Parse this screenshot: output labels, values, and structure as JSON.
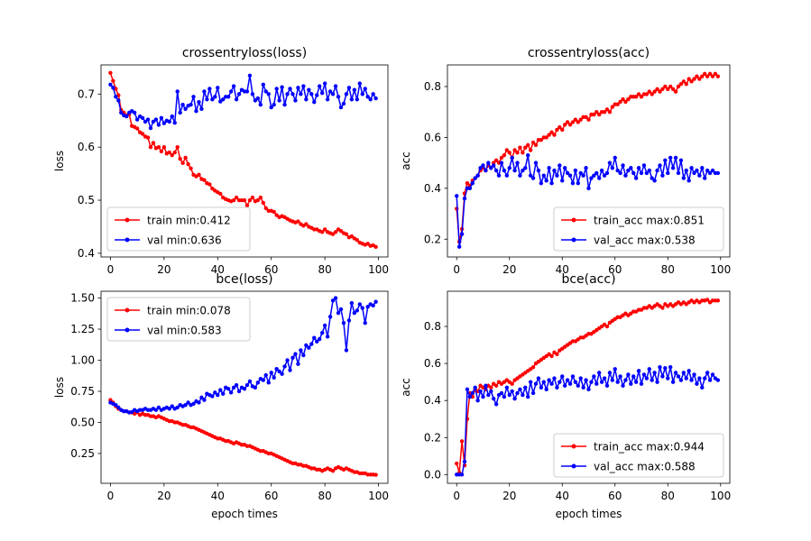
{
  "chart_data": [
    {
      "type": "line",
      "title": "crossentryloss(loss)",
      "xlabel": "",
      "ylabel": "loss",
      "xlim": [
        -3.5,
        103.5
      ],
      "ylim": [
        0.393,
        0.755
      ],
      "xticks": [
        0,
        20,
        40,
        60,
        80,
        100
      ],
      "yticks": [
        0.4,
        0.5,
        0.6,
        0.7
      ],
      "xticklabels": [
        "0",
        "20",
        "40",
        "60",
        "80",
        "100"
      ],
      "yticklabels": [
        "0.4",
        "0.5",
        "0.6",
        "0.7"
      ],
      "legend_position": "lower-left",
      "series": [
        {
          "name": "train min:0.412",
          "color": "#ff0000",
          "values": [
            0.74,
            0.725,
            0.71,
            0.698,
            0.67,
            0.665,
            0.66,
            0.662,
            0.64,
            0.638,
            0.635,
            0.628,
            0.625,
            0.62,
            0.618,
            0.6,
            0.608,
            0.598,
            0.6,
            0.592,
            0.6,
            0.588,
            0.59,
            0.585,
            0.59,
            0.6,
            0.578,
            0.57,
            0.58,
            0.568,
            0.56,
            0.548,
            0.545,
            0.548,
            0.54,
            0.538,
            0.532,
            0.53,
            0.522,
            0.518,
            0.515,
            0.512,
            0.505,
            0.502,
            0.5,
            0.498,
            0.5,
            0.505,
            0.5,
            0.5,
            0.5,
            0.49,
            0.5,
            0.505,
            0.498,
            0.5,
            0.505,
            0.495,
            0.485,
            0.48,
            0.48,
            0.478,
            0.472,
            0.468,
            0.47,
            0.468,
            0.465,
            0.462,
            0.46,
            0.458,
            0.46,
            0.455,
            0.452,
            0.455,
            0.45,
            0.448,
            0.445,
            0.445,
            0.442,
            0.44,
            0.445,
            0.44,
            0.438,
            0.436,
            0.44,
            0.445,
            0.442,
            0.438,
            0.436,
            0.43,
            0.432,
            0.428,
            0.425,
            0.42,
            0.418,
            0.416,
            0.418,
            0.414,
            0.415,
            0.412
          ]
        },
        {
          "name": "val min:0.636",
          "color": "#0000ff",
          "values": [
            0.718,
            0.712,
            0.695,
            0.688,
            0.665,
            0.66,
            0.658,
            0.665,
            0.668,
            0.665,
            0.652,
            0.658,
            0.655,
            0.648,
            0.652,
            0.636,
            0.648,
            0.652,
            0.642,
            0.655,
            0.645,
            0.65,
            0.648,
            0.658,
            0.646,
            0.705,
            0.665,
            0.68,
            0.672,
            0.678,
            0.68,
            0.695,
            0.668,
            0.685,
            0.672,
            0.705,
            0.69,
            0.71,
            0.69,
            0.695,
            0.712,
            0.686,
            0.69,
            0.695,
            0.695,
            0.705,
            0.715,
            0.69,
            0.7,
            0.708,
            0.705,
            0.705,
            0.735,
            0.7,
            0.688,
            0.692,
            0.68,
            0.718,
            0.705,
            0.7,
            0.675,
            0.68,
            0.71,
            0.688,
            0.713,
            0.68,
            0.7,
            0.71,
            0.7,
            0.688,
            0.712,
            0.7,
            0.715,
            0.69,
            0.708,
            0.7,
            0.685,
            0.698,
            0.715,
            0.702,
            0.72,
            0.69,
            0.705,
            0.7,
            0.715,
            0.695,
            0.675,
            0.682,
            0.7,
            0.712,
            0.69,
            0.708,
            0.69,
            0.72,
            0.7,
            0.71,
            0.695,
            0.69,
            0.7,
            0.692
          ]
        }
      ]
    },
    {
      "type": "line",
      "title": "crossentryloss(acc)",
      "xlabel": "",
      "ylabel": "acc",
      "xlim": [
        -3.5,
        103.5
      ],
      "ylim": [
        0.13,
        0.885
      ],
      "xticks": [
        0,
        20,
        40,
        60,
        80,
        100
      ],
      "yticks": [
        0.2,
        0.4,
        0.6,
        0.8
      ],
      "xticklabels": [
        "0",
        "20",
        "40",
        "60",
        "80",
        "100"
      ],
      "yticklabels": [
        "0.2",
        "0.4",
        "0.6",
        "0.8"
      ],
      "legend_position": "lower-right",
      "series": [
        {
          "name": "train_acc max:0.851",
          "color": "#ff0000",
          "values": [
            0.32,
            0.19,
            0.24,
            0.38,
            0.42,
            0.41,
            0.43,
            0.44,
            0.45,
            0.47,
            0.48,
            0.47,
            0.49,
            0.48,
            0.5,
            0.51,
            0.5,
            0.52,
            0.53,
            0.55,
            0.54,
            0.52,
            0.55,
            0.54,
            0.56,
            0.54,
            0.56,
            0.57,
            0.55,
            0.58,
            0.57,
            0.59,
            0.59,
            0.6,
            0.6,
            0.61,
            0.62,
            0.61,
            0.63,
            0.64,
            0.63,
            0.65,
            0.66,
            0.65,
            0.66,
            0.67,
            0.66,
            0.67,
            0.68,
            0.68,
            0.67,
            0.69,
            0.69,
            0.7,
            0.69,
            0.7,
            0.7,
            0.71,
            0.7,
            0.72,
            0.73,
            0.73,
            0.74,
            0.75,
            0.74,
            0.75,
            0.76,
            0.76,
            0.76,
            0.77,
            0.76,
            0.77,
            0.77,
            0.78,
            0.77,
            0.78,
            0.79,
            0.78,
            0.79,
            0.8,
            0.79,
            0.8,
            0.79,
            0.78,
            0.8,
            0.81,
            0.82,
            0.81,
            0.83,
            0.82,
            0.83,
            0.84,
            0.83,
            0.84,
            0.85,
            0.84,
            0.85,
            0.84,
            0.85,
            0.84
          ]
        },
        {
          "name": "val_acc max:0.538",
          "color": "#0000ff",
          "values": [
            0.37,
            0.17,
            0.22,
            0.36,
            0.4,
            0.4,
            0.42,
            0.44,
            0.45,
            0.48,
            0.49,
            0.47,
            0.5,
            0.48,
            0.49,
            0.47,
            0.45,
            0.5,
            0.47,
            0.45,
            0.48,
            0.52,
            0.47,
            0.5,
            0.45,
            0.47,
            0.48,
            0.53,
            0.45,
            0.44,
            0.5,
            0.47,
            0.42,
            0.45,
            0.43,
            0.48,
            0.42,
            0.47,
            0.45,
            0.49,
            0.43,
            0.48,
            0.46,
            0.45,
            0.42,
            0.47,
            0.42,
            0.46,
            0.45,
            0.48,
            0.4,
            0.44,
            0.45,
            0.46,
            0.44,
            0.47,
            0.45,
            0.46,
            0.5,
            0.48,
            0.52,
            0.47,
            0.46,
            0.49,
            0.45,
            0.47,
            0.48,
            0.46,
            0.44,
            0.48,
            0.46,
            0.49,
            0.46,
            0.47,
            0.44,
            0.43,
            0.47,
            0.49,
            0.45,
            0.51,
            0.46,
            0.52,
            0.48,
            0.52,
            0.46,
            0.51,
            0.44,
            0.47,
            0.43,
            0.48,
            0.46,
            0.47,
            0.45,
            0.48,
            0.44,
            0.47,
            0.46,
            0.47,
            0.46,
            0.46
          ]
        }
      ]
    },
    {
      "type": "line",
      "title": "bce(loss)",
      "xlabel": "epoch times",
      "ylabel": "loss",
      "xlim": [
        -3.5,
        103.5
      ],
      "ylim": [
        0.01,
        1.555
      ],
      "xticks": [
        0,
        20,
        40,
        60,
        80,
        100
      ],
      "yticks": [
        0.25,
        0.5,
        0.75,
        1.0,
        1.25,
        1.5
      ],
      "xticklabels": [
        "0",
        "20",
        "40",
        "60",
        "80",
        "100"
      ],
      "yticklabels": [
        "0.25",
        "0.50",
        "0.75",
        "1.00",
        "1.25",
        "1.50"
      ],
      "legend_position": "upper-left",
      "series": [
        {
          "name": "train min:0.078",
          "color": "#ff0000",
          "values": [
            0.68,
            0.66,
            0.63,
            0.61,
            0.6,
            0.59,
            0.59,
            0.58,
            0.58,
            0.57,
            0.58,
            0.56,
            0.57,
            0.56,
            0.56,
            0.55,
            0.55,
            0.54,
            0.55,
            0.54,
            0.53,
            0.52,
            0.51,
            0.51,
            0.5,
            0.5,
            0.49,
            0.48,
            0.48,
            0.47,
            0.46,
            0.46,
            0.45,
            0.44,
            0.43,
            0.42,
            0.41,
            0.4,
            0.39,
            0.38,
            0.37,
            0.37,
            0.36,
            0.35,
            0.35,
            0.34,
            0.33,
            0.34,
            0.33,
            0.32,
            0.32,
            0.31,
            0.31,
            0.3,
            0.29,
            0.28,
            0.27,
            0.27,
            0.26,
            0.25,
            0.25,
            0.24,
            0.23,
            0.22,
            0.21,
            0.2,
            0.19,
            0.18,
            0.17,
            0.17,
            0.16,
            0.16,
            0.15,
            0.15,
            0.14,
            0.13,
            0.13,
            0.12,
            0.12,
            0.11,
            0.12,
            0.13,
            0.12,
            0.11,
            0.13,
            0.14,
            0.13,
            0.12,
            0.13,
            0.12,
            0.11,
            0.1,
            0.1,
            0.09,
            0.09,
            0.09,
            0.08,
            0.08,
            0.08,
            0.078
          ]
        },
        {
          "name": "val min:0.583",
          "color": "#0000ff",
          "values": [
            0.66,
            0.65,
            0.64,
            0.62,
            0.6,
            0.59,
            0.59,
            0.58,
            0.583,
            0.6,
            0.59,
            0.6,
            0.6,
            0.61,
            0.6,
            0.6,
            0.61,
            0.6,
            0.62,
            0.6,
            0.61,
            0.62,
            0.61,
            0.63,
            0.61,
            0.62,
            0.64,
            0.63,
            0.64,
            0.66,
            0.64,
            0.65,
            0.67,
            0.66,
            0.7,
            0.68,
            0.73,
            0.72,
            0.71,
            0.74,
            0.72,
            0.76,
            0.73,
            0.78,
            0.77,
            0.74,
            0.78,
            0.8,
            0.75,
            0.78,
            0.77,
            0.8,
            0.83,
            0.79,
            0.78,
            0.82,
            0.85,
            0.84,
            0.88,
            0.82,
            0.9,
            0.86,
            0.93,
            0.91,
            0.89,
            0.95,
            1.0,
            0.92,
            1.02,
            1.05,
            0.97,
            1.08,
            1.04,
            1.12,
            1.1,
            1.13,
            1.18,
            1.15,
            1.17,
            1.22,
            1.28,
            1.19,
            1.35,
            1.48,
            1.5,
            1.38,
            1.41,
            1.3,
            1.08,
            1.32,
            1.46,
            1.38,
            1.4,
            1.45,
            1.42,
            1.3,
            1.43,
            1.45,
            1.44,
            1.47
          ]
        }
      ]
    },
    {
      "type": "line",
      "title": "bce(acc)",
      "xlabel": "epoch times",
      "ylabel": "acc",
      "xlim": [
        -3.5,
        103.5
      ],
      "ylim": [
        -0.047,
        0.99
      ],
      "xticks": [
        0,
        20,
        40,
        60,
        80,
        100
      ],
      "yticks": [
        0.0,
        0.2,
        0.4,
        0.6,
        0.8
      ],
      "xticklabels": [
        "0",
        "20",
        "40",
        "60",
        "80",
        "100"
      ],
      "yticklabels": [
        "0.0",
        "0.2",
        "0.4",
        "0.6",
        "0.8"
      ],
      "legend_position": "lower-right",
      "series": [
        {
          "name": "train_acc max:0.944",
          "color": "#ff0000",
          "values": [
            0.06,
            0.01,
            0.18,
            0.05,
            0.3,
            0.44,
            0.42,
            0.46,
            0.45,
            0.48,
            0.47,
            0.46,
            0.48,
            0.47,
            0.49,
            0.48,
            0.5,
            0.49,
            0.5,
            0.51,
            0.5,
            0.49,
            0.51,
            0.52,
            0.53,
            0.54,
            0.55,
            0.56,
            0.57,
            0.58,
            0.6,
            0.61,
            0.62,
            0.63,
            0.64,
            0.65,
            0.64,
            0.66,
            0.65,
            0.67,
            0.68,
            0.69,
            0.7,
            0.71,
            0.72,
            0.72,
            0.73,
            0.74,
            0.74,
            0.75,
            0.76,
            0.76,
            0.77,
            0.78,
            0.79,
            0.8,
            0.81,
            0.8,
            0.82,
            0.83,
            0.84,
            0.85,
            0.85,
            0.86,
            0.87,
            0.86,
            0.87,
            0.88,
            0.88,
            0.89,
            0.89,
            0.9,
            0.9,
            0.91,
            0.9,
            0.91,
            0.92,
            0.91,
            0.9,
            0.92,
            0.91,
            0.92,
            0.91,
            0.92,
            0.93,
            0.92,
            0.93,
            0.92,
            0.93,
            0.94,
            0.93,
            0.94,
            0.93,
            0.94,
            0.94,
            0.944,
            0.93,
            0.94,
            0.94,
            0.94
          ]
        },
        {
          "name": "val_acc max:0.588",
          "color": "#0000ff",
          "values": [
            0.0,
            0.0,
            0.0,
            0.07,
            0.46,
            0.42,
            0.44,
            0.47,
            0.4,
            0.45,
            0.42,
            0.48,
            0.43,
            0.45,
            0.41,
            0.38,
            0.43,
            0.44,
            0.42,
            0.47,
            0.43,
            0.45,
            0.41,
            0.44,
            0.46,
            0.43,
            0.47,
            0.42,
            0.5,
            0.44,
            0.49,
            0.52,
            0.47,
            0.5,
            0.46,
            0.51,
            0.49,
            0.52,
            0.47,
            0.5,
            0.53,
            0.48,
            0.51,
            0.49,
            0.53,
            0.5,
            0.48,
            0.52,
            0.47,
            0.51,
            0.46,
            0.5,
            0.53,
            0.49,
            0.55,
            0.5,
            0.52,
            0.48,
            0.55,
            0.51,
            0.57,
            0.5,
            0.53,
            0.48,
            0.51,
            0.54,
            0.49,
            0.53,
            0.5,
            0.56,
            0.49,
            0.54,
            0.52,
            0.57,
            0.51,
            0.55,
            0.5,
            0.58,
            0.53,
            0.575,
            0.52,
            0.58,
            0.5,
            0.55,
            0.53,
            0.51,
            0.55,
            0.52,
            0.56,
            0.51,
            0.54,
            0.49,
            0.52,
            0.47,
            0.52,
            0.55,
            0.51,
            0.54,
            0.52,
            0.51
          ]
        }
      ]
    }
  ]
}
